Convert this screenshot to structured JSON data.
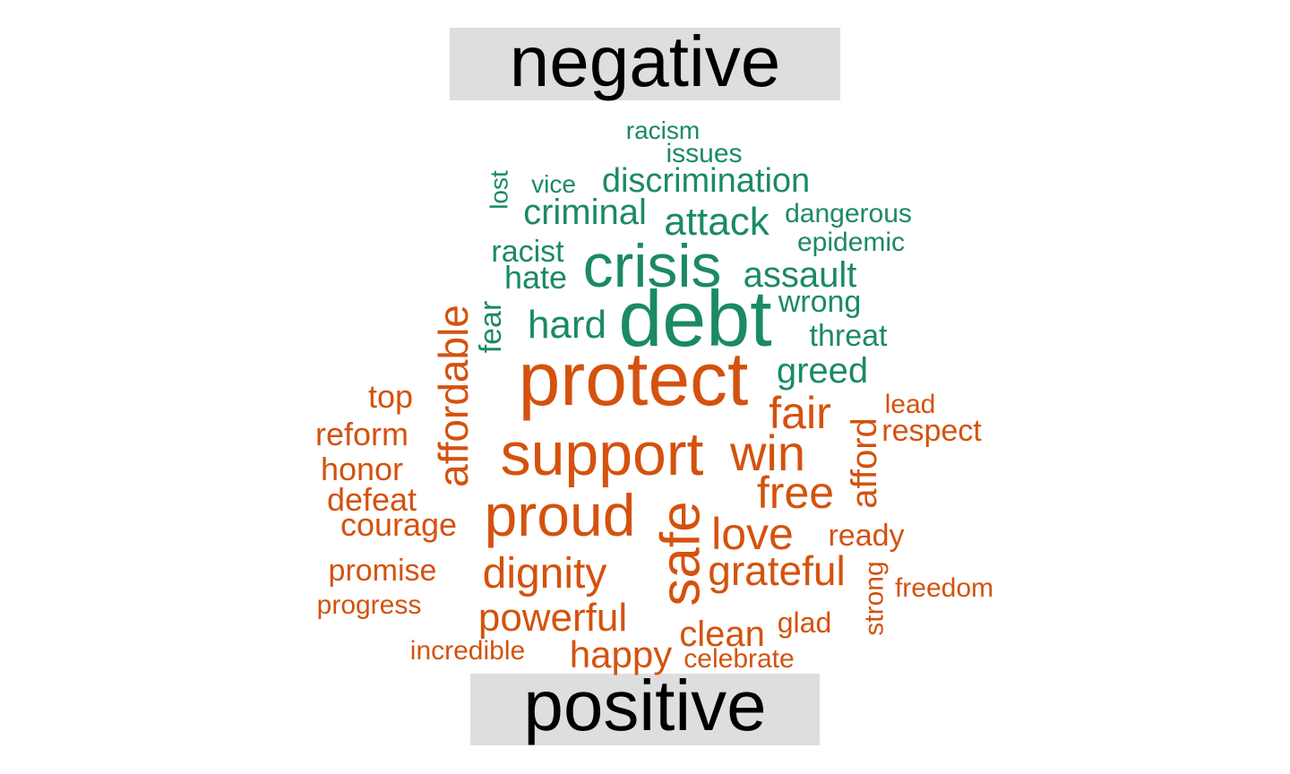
{
  "chart_data": {
    "type": "wordcloud",
    "groups": [
      {
        "name": "negative",
        "color": "#1b8a64",
        "words": [
          {
            "text": "debt",
            "size": 88
          },
          {
            "text": "crisis",
            "size": 68
          },
          {
            "text": "attack",
            "size": 44
          },
          {
            "text": "assault",
            "size": 40
          },
          {
            "text": "hard",
            "size": 44
          },
          {
            "text": "greed",
            "size": 40
          },
          {
            "text": "criminal",
            "size": 40
          },
          {
            "text": "discrimination",
            "size": 38
          },
          {
            "text": "hate",
            "size": 36
          },
          {
            "text": "racist",
            "size": 34
          },
          {
            "text": "wrong",
            "size": 34
          },
          {
            "text": "threat",
            "size": 34
          },
          {
            "text": "fear",
            "size": 34
          },
          {
            "text": "dangerous",
            "size": 30
          },
          {
            "text": "epidemic",
            "size": 30
          },
          {
            "text": "issues",
            "size": 30
          },
          {
            "text": "racism",
            "size": 28
          },
          {
            "text": "vice",
            "size": 28
          },
          {
            "text": "lost",
            "size": 28
          }
        ]
      },
      {
        "name": "positive",
        "color": "#d4520e",
        "words": [
          {
            "text": "protect",
            "size": 84
          },
          {
            "text": "support",
            "size": 68
          },
          {
            "text": "proud",
            "size": 66
          },
          {
            "text": "safe",
            "size": 62
          },
          {
            "text": "win",
            "size": 56
          },
          {
            "text": "affordable",
            "size": 46
          },
          {
            "text": "free",
            "size": 50
          },
          {
            "text": "fair",
            "size": 50
          },
          {
            "text": "love",
            "size": 50
          },
          {
            "text": "dignity",
            "size": 48
          },
          {
            "text": "grateful",
            "size": 46
          },
          {
            "text": "powerful",
            "size": 44
          },
          {
            "text": "afford",
            "size": 40
          },
          {
            "text": "happy",
            "size": 42
          },
          {
            "text": "clean",
            "size": 40
          },
          {
            "text": "top",
            "size": 36
          },
          {
            "text": "reform",
            "size": 36
          },
          {
            "text": "honor",
            "size": 36
          },
          {
            "text": "defeat",
            "size": 36
          },
          {
            "text": "courage",
            "size": 36
          },
          {
            "text": "promise",
            "size": 34
          },
          {
            "text": "respect",
            "size": 34
          },
          {
            "text": "ready",
            "size": 34
          },
          {
            "text": "glad",
            "size": 32
          },
          {
            "text": "lead",
            "size": 30
          },
          {
            "text": "freedom",
            "size": 30
          },
          {
            "text": "strong",
            "size": 30
          },
          {
            "text": "progress",
            "size": 30
          },
          {
            "text": "incredible",
            "size": 30
          },
          {
            "text": "celebrate",
            "size": 30
          }
        ]
      }
    ]
  }
}
